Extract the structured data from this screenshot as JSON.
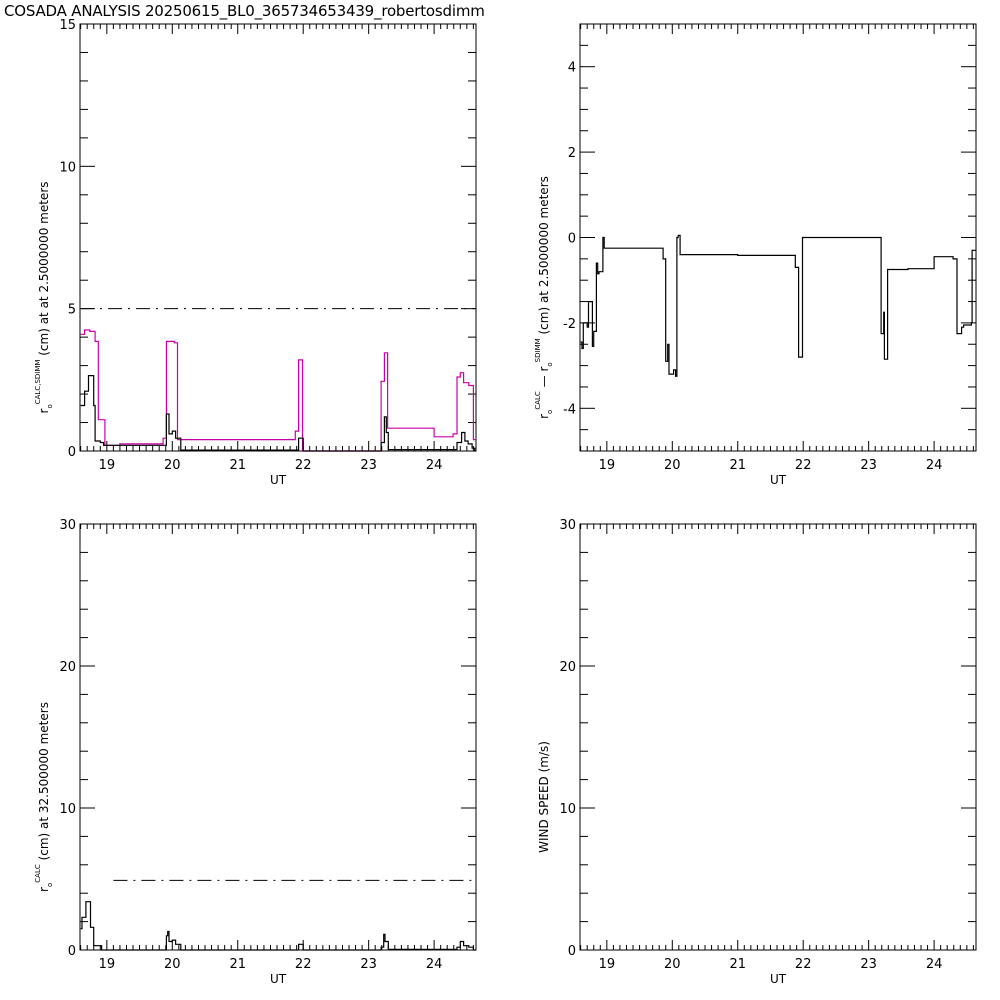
{
  "title": "COSADA ANALYSIS 20250615_BL0_365734653439_robertosdimm",
  "colors": {
    "black": "#000000",
    "magenta": "#cc00aa"
  },
  "chart_data": [
    {
      "id": "top-left",
      "type": "line",
      "step": true,
      "xlabel": "UT",
      "ylabel": {
        "base": "r",
        "sub": "o",
        "sup": "CALC,SDIMM",
        "rest": " (cm)  at   at 2.5000000 meters"
      },
      "xlim": [
        18.59,
        24.64
      ],
      "ylim": [
        0,
        15
      ],
      "xticks": [
        19,
        20,
        21,
        22,
        23,
        24
      ],
      "yticks": [
        0,
        5,
        10,
        15
      ],
      "y_minor_step": 1,
      "reference_line": {
        "y": 5,
        "style": "dash-dot",
        "x_start": 18.59
      },
      "series": [
        {
          "color": "#cc00aa",
          "points": [
            [
              18.6,
              4.1
            ],
            [
              18.66,
              4.25
            ],
            [
              18.74,
              4.2
            ],
            [
              18.82,
              3.85
            ],
            [
              18.87,
              1.1
            ],
            [
              18.97,
              0.2
            ],
            [
              19.2,
              0.25
            ],
            [
              19.86,
              0.45
            ],
            [
              19.91,
              3.85
            ],
            [
              20.03,
              3.8
            ],
            [
              20.08,
              0.4
            ],
            [
              21.88,
              0.7
            ],
            [
              21.93,
              3.2
            ],
            [
              21.99,
              0
            ],
            [
              23.19,
              2.45
            ],
            [
              23.24,
              3.45
            ],
            [
              23.29,
              0.8
            ],
            [
              24.0,
              0.5
            ],
            [
              24.29,
              0.6
            ],
            [
              24.35,
              2.6
            ],
            [
              24.4,
              2.75
            ],
            [
              24.45,
              2.4
            ],
            [
              24.53,
              2.3
            ],
            [
              24.6,
              0.4
            ]
          ]
        },
        {
          "color": "#000000",
          "points": [
            [
              18.6,
              1.6
            ],
            [
              18.66,
              2.1
            ],
            [
              18.72,
              2.65
            ],
            [
              18.8,
              1.6
            ],
            [
              18.82,
              0.35
            ],
            [
              18.9,
              0.3
            ],
            [
              18.95,
              0.2
            ],
            [
              19.91,
              1.3
            ],
            [
              19.95,
              0.6
            ],
            [
              20.0,
              0.7
            ],
            [
              20.05,
              0.45
            ],
            [
              20.13,
              0.03
            ],
            [
              21.93,
              0.45
            ],
            [
              22.0,
              0
            ],
            [
              23.19,
              0.3
            ],
            [
              23.24,
              1.2
            ],
            [
              23.27,
              0.65
            ],
            [
              23.3,
              0.05
            ],
            [
              24.35,
              0.3
            ],
            [
              24.42,
              0.65
            ],
            [
              24.47,
              0.35
            ],
            [
              24.52,
              0.25
            ],
            [
              24.58,
              0.1
            ],
            [
              24.62,
              0
            ]
          ]
        }
      ]
    },
    {
      "id": "top-right",
      "type": "line",
      "step": true,
      "xlabel": "UT",
      "ylabel": {
        "base": "r",
        "sub": "o",
        "sup": "CALC",
        "mid": "  —  r",
        "sub2": "o",
        "sup2": "SDIMM",
        "rest": " (cm)  at 2.5000000 meters"
      },
      "xlim": [
        18.59,
        24.64
      ],
      "ylim": [
        -5,
        5
      ],
      "xticks": [
        19,
        20,
        21,
        22,
        23,
        24
      ],
      "yticks": [
        -4,
        -2,
        0,
        2,
        4
      ],
      "y_minor_step": 0.5,
      "series": [
        {
          "color": "#000000",
          "points": [
            [
              18.6,
              -2.45
            ],
            [
              18.62,
              -2.6
            ],
            [
              18.64,
              -2.0
            ],
            [
              18.7,
              -2.1
            ],
            [
              18.72,
              -1.5
            ],
            [
              18.78,
              -2.55
            ],
            [
              18.8,
              -2.2
            ],
            [
              18.84,
              -0.6
            ],
            [
              18.86,
              -0.85
            ],
            [
              18.88,
              -0.8
            ],
            [
              18.94,
              0
            ],
            [
              18.96,
              -0.25
            ],
            [
              19.86,
              -0.5
            ],
            [
              19.9,
              -2.9
            ],
            [
              19.93,
              -2.5
            ],
            [
              19.95,
              -3.2
            ],
            [
              20.02,
              -3.1
            ],
            [
              20.05,
              -3.25
            ],
            [
              20.07,
              0.0
            ],
            [
              20.09,
              0.05
            ],
            [
              20.12,
              -0.4
            ],
            [
              21.0,
              -0.42
            ],
            [
              21.88,
              -0.7
            ],
            [
              21.93,
              -2.8
            ],
            [
              21.99,
              0
            ],
            [
              23.19,
              -2.25
            ],
            [
              23.23,
              -1.75
            ],
            [
              23.24,
              -2.85
            ],
            [
              23.29,
              -0.75
            ],
            [
              23.6,
              -0.73
            ],
            [
              24.0,
              -0.45
            ],
            [
              24.29,
              -0.5
            ],
            [
              24.35,
              -2.25
            ],
            [
              24.42,
              -2.1
            ],
            [
              24.45,
              -2.05
            ],
            [
              24.57,
              -2.0
            ],
            [
              24.58,
              -0.3
            ]
          ]
        }
      ]
    },
    {
      "id": "bottom-left",
      "type": "line",
      "step": true,
      "xlabel": "UT",
      "ylabel": {
        "base": "r",
        "sub": "o",
        "sup": "CALC",
        "rest": " (cm)  at 32.500000 meters"
      },
      "xlim": [
        18.59,
        24.64
      ],
      "ylim": [
        0,
        30
      ],
      "xticks": [
        19,
        20,
        21,
        22,
        23,
        24
      ],
      "yticks": [
        0,
        10,
        20,
        30
      ],
      "y_minor_step": 2,
      "reference_line": {
        "y": 4.9,
        "style": "dash-dot",
        "x_start": 19.1
      },
      "series": [
        {
          "color": "#000000",
          "points": [
            [
              18.6,
              1.5
            ],
            [
              18.62,
              2.3
            ],
            [
              18.68,
              3.4
            ],
            [
              18.75,
              1.6
            ],
            [
              18.8,
              0.3
            ],
            [
              18.92,
              0
            ],
            [
              19.91,
              1.0
            ],
            [
              19.93,
              1.3
            ],
            [
              19.95,
              0.6
            ],
            [
              20.0,
              0.7
            ],
            [
              20.05,
              0.4
            ],
            [
              20.13,
              0
            ],
            [
              21.93,
              0.4
            ],
            [
              22.0,
              0
            ],
            [
              23.19,
              0.2
            ],
            [
              23.23,
              1.1
            ],
            [
              23.25,
              0.6
            ],
            [
              23.3,
              0.05
            ],
            [
              24.35,
              0.2
            ],
            [
              24.4,
              0.6
            ],
            [
              24.45,
              0.3
            ],
            [
              24.53,
              0.2
            ],
            [
              24.6,
              0
            ]
          ]
        }
      ]
    },
    {
      "id": "bottom-right",
      "type": "line",
      "step": true,
      "xlabel": "UT",
      "ylabel": {
        "rest": "WIND SPEED (m/s)"
      },
      "xlim": [
        18.59,
        24.64
      ],
      "ylim": [
        0,
        30
      ],
      "xticks": [
        19,
        20,
        21,
        22,
        23,
        24
      ],
      "yticks": [
        0,
        10,
        20,
        30
      ],
      "y_minor_step": 2,
      "series": []
    }
  ]
}
